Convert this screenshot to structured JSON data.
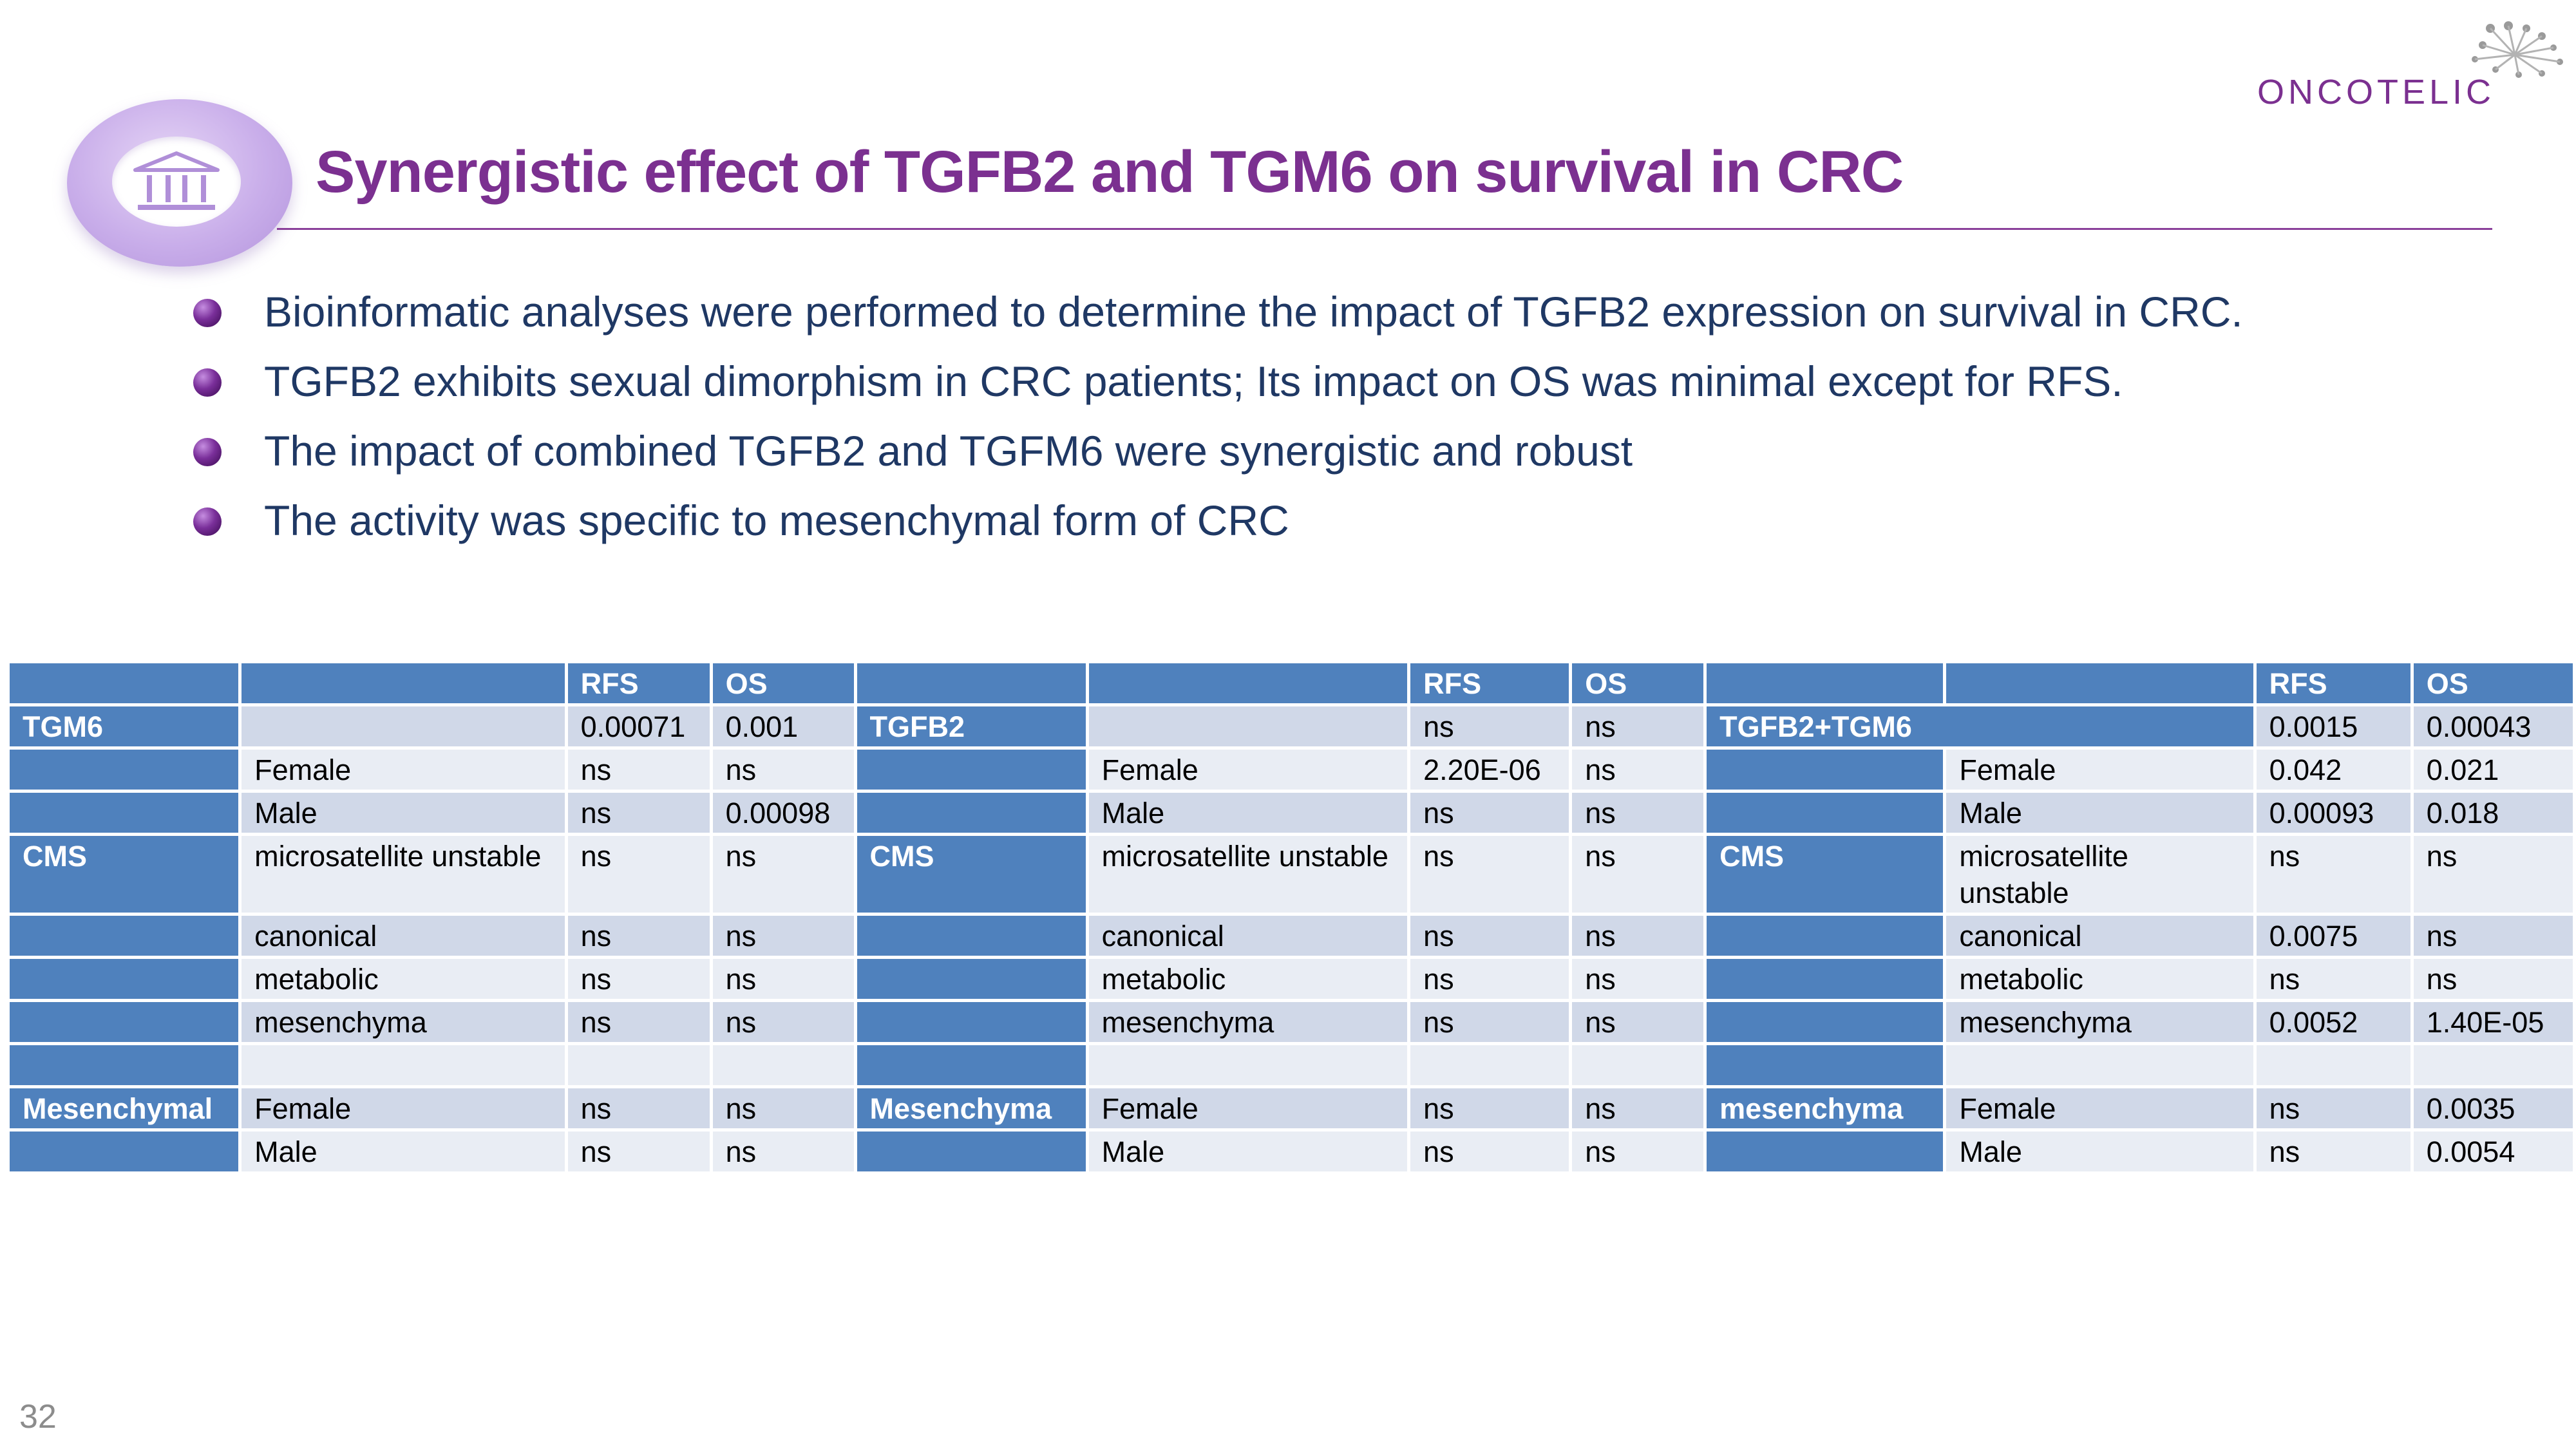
{
  "header": {
    "title": "Synergistic effect of TGFB2 and TGM6 on survival in CRC",
    "brand": "ONCOTELIC"
  },
  "bullets": [
    "Bioinformatic analyses were performed to determine the impact of TGFB2 expression on survival in CRC.",
    "TGFB2 exhibits sexual dimorphism in CRC patients; Its impact on OS was minimal except for RFS.",
    "The impact of combined TGFB2 and TGFM6 were synergistic and robust",
    "The activity was specific to mesenchymal form of CRC"
  ],
  "table": {
    "col_headers": {
      "rfs": "RFS",
      "os": "OS"
    },
    "groups": [
      {
        "gene": "TGM6",
        "overall": {
          "rfs": "0.00071",
          "os": "0.001"
        },
        "female": {
          "label": "Female",
          "rfs": "ns",
          "os": "ns"
        },
        "male": {
          "label": "Male",
          "rfs": "ns",
          "os": "0.00098"
        },
        "cms_label": "CMS",
        "msi": {
          "label": "microsatellite unstable",
          "rfs": "ns",
          "os": "ns"
        },
        "canonical": {
          "label": "canonical",
          "rfs": "ns",
          "os": "ns"
        },
        "metabolic": {
          "label": "metabolic",
          "rfs": "ns",
          "os": "ns"
        },
        "mesenchyma": {
          "label": "mesenchyma",
          "rfs": "ns",
          "os": "ns"
        },
        "mes_label": "Mesenchymal",
        "mes_female": {
          "label": "Female",
          "rfs": "ns",
          "os": "ns"
        },
        "mes_male": {
          "label": "Male",
          "rfs": "ns",
          "os": "ns"
        }
      },
      {
        "gene": "TGFB2",
        "overall": {
          "rfs": "ns",
          "os": "ns"
        },
        "female": {
          "label": "Female",
          "rfs": "2.20E-06",
          "os": "ns"
        },
        "male": {
          "label": "Male",
          "rfs": "ns",
          "os": "ns"
        },
        "cms_label": "CMS",
        "msi": {
          "label": "microsatellite unstable",
          "rfs": "ns",
          "os": "ns"
        },
        "canonical": {
          "label": "canonical",
          "rfs": "ns",
          "os": "ns"
        },
        "metabolic": {
          "label": "metabolic",
          "rfs": "ns",
          "os": "ns"
        },
        "mesenchyma": {
          "label": "mesenchyma",
          "rfs": "ns",
          "os": "ns"
        },
        "mes_label": "Mesenchyma",
        "mes_female": {
          "label": "Female",
          "rfs": "ns",
          "os": "ns"
        },
        "mes_male": {
          "label": "Male",
          "rfs": "ns",
          "os": "ns"
        }
      },
      {
        "gene": "TGFB2+TGM6",
        "overall": {
          "rfs": "0.0015",
          "os": "0.00043"
        },
        "female": {
          "label": "Female",
          "rfs": "0.042",
          "os": "0.021"
        },
        "male": {
          "label": "Male",
          "rfs": "0.00093",
          "os": "0.018"
        },
        "cms_label": "CMS",
        "msi": {
          "label": "microsatellite unstable",
          "rfs": "ns",
          "os": "ns"
        },
        "canonical": {
          "label": "canonical",
          "rfs": "0.0075",
          "os": "ns"
        },
        "metabolic": {
          "label": "metabolic",
          "rfs": "ns",
          "os": "ns"
        },
        "mesenchyma": {
          "label": "mesenchyma",
          "rfs": "0.0052",
          "os": "1.40E-05"
        },
        "mes_label": "mesenchyma",
        "mes_female": {
          "label": "Female",
          "rfs": "ns",
          "os": "0.0035"
        },
        "mes_male": {
          "label": "Male",
          "rfs": "ns",
          "os": "0.0054"
        }
      }
    ]
  },
  "footer": {
    "page_number": "32"
  }
}
